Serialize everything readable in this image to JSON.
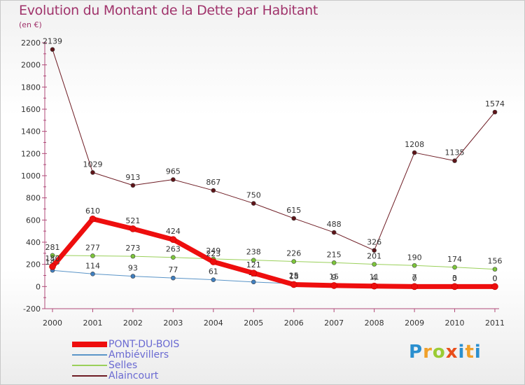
{
  "title": "Evolution du Montant de la Dette par Habitant",
  "subtitle": "(en €)",
  "brand": "Proxiti",
  "chart_data": {
    "type": "line",
    "x": [
      "2000",
      "2001",
      "2002",
      "2003",
      "2004",
      "2005",
      "2006",
      "2007",
      "2008",
      "2009",
      "2010",
      "2011"
    ],
    "ylim": [
      -200,
      2200
    ],
    "yticks": [
      -200,
      0,
      200,
      400,
      600,
      800,
      1000,
      1200,
      1400,
      1600,
      1800,
      2000,
      2200
    ],
    "grid": false,
    "legend_position": "bottom-left",
    "series": [
      {
        "name": "Alaincourt",
        "color": "#6e1c24",
        "marker": "#5e1418",
        "width": 1,
        "values": [
          2139,
          1029,
          913,
          965,
          867,
          750,
          615,
          488,
          326,
          1208,
          1135,
          1574
        ],
        "labels": [
          "2139",
          "1029",
          "913",
          "965",
          "867",
          "750",
          "615",
          "488",
          "326",
          "1208",
          "1135",
          "1574"
        ]
      },
      {
        "name": "Selles",
        "color": "#9ad05a",
        "marker": "#7cc53a",
        "width": 1,
        "values": [
          281,
          277,
          273,
          263,
          249,
          238,
          226,
          215,
          201,
          190,
          174,
          156
        ],
        "labels": [
          "281",
          "277",
          "273",
          "263",
          "249",
          "238",
          "226",
          "215",
          "201",
          "190",
          "174",
          "156"
        ]
      },
      {
        "name": "Ambiévillers",
        "color": "#5b95c8",
        "marker": "#3f7fc0",
        "width": 1,
        "values": [
          146,
          114,
          93,
          77,
          61,
          41,
          25,
          15,
          11,
          7,
          3,
          0
        ],
        "labels": [
          "146",
          "114",
          "93",
          "77",
          "61",
          "41",
          "25",
          "15",
          "11",
          "7",
          "3",
          "0"
        ]
      },
      {
        "name": "PONT-DU-BOIS",
        "color": "#ee0e0e",
        "marker": "#ee0e0e",
        "width": 7,
        "values": [
          180,
          610,
          521,
          424,
          223,
          121,
          18,
          9,
          4,
          0,
          0,
          0
        ],
        "labels": [
          "180",
          "610",
          "521",
          "424",
          "223",
          "121",
          "18",
          "9",
          "4",
          "0",
          "0",
          "0"
        ]
      }
    ]
  },
  "legend": [
    {
      "name": "PONT-DU-BOIS",
      "color": "#ee0e0e",
      "thick": true
    },
    {
      "name": "Ambiévillers",
      "color": "#5b95c8",
      "thick": false
    },
    {
      "name": "Selles",
      "color": "#9ad05a",
      "thick": false
    },
    {
      "name": "Alaincourt",
      "color": "#6e1c24",
      "thick": false
    }
  ]
}
